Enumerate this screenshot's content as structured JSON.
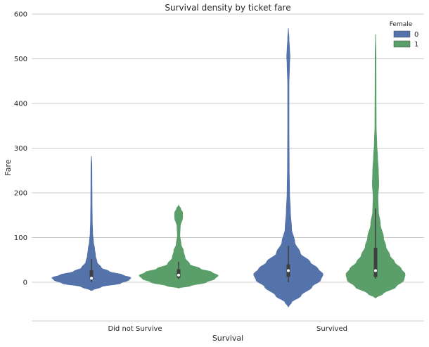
{
  "chart_data": {
    "type": "violin",
    "title": "Survival density by ticket fare",
    "xlabel": "Survival",
    "ylabel": "Fare",
    "categories": [
      "Did not Survive",
      "Survived"
    ],
    "ylim": [
      -85,
      600
    ],
    "yticks": [
      0,
      100,
      200,
      300,
      400,
      500,
      600
    ],
    "grid": true,
    "legend": {
      "title": "Female",
      "placement": "top-right"
    },
    "colors": {
      "0": "#5573ab",
      "1": "#5a9e6a",
      "box": "#3f3f3f",
      "median": "#ffffff"
    },
    "series": [
      {
        "name": "0",
        "violins": [
          {
            "category": "Did not Survive",
            "min": -18,
            "max": 282,
            "box": {
              "q1": 7,
              "median": 9,
              "q3": 27,
              "whisker_low": 0,
              "whisker_high": 52
            },
            "profile": [
              [
                -18,
                0.02
              ],
              [
                -10,
                0.25
              ],
              [
                -2,
                0.75
              ],
              [
                5,
                0.95
              ],
              [
                10,
                1.0
              ],
              [
                16,
                0.8
              ],
              [
                24,
                0.45
              ],
              [
                32,
                0.25
              ],
              [
                45,
                0.14
              ],
              [
                60,
                0.1
              ],
              [
                75,
                0.08
              ],
              [
                90,
                0.05
              ],
              [
                110,
                0.03
              ],
              [
                140,
                0.02
              ],
              [
                180,
                0.015
              ],
              [
                230,
                0.012
              ],
              [
                260,
                0.01
              ],
              [
                282,
                0.0
              ]
            ]
          },
          {
            "category": "Survived",
            "min": -55,
            "max": 568,
            "box": {
              "q1": 12,
              "median": 26,
              "q3": 40,
              "whisker_low": 0,
              "whisker_high": 82
            },
            "profile": [
              [
                -55,
                0.0
              ],
              [
                -45,
                0.08
              ],
              [
                -30,
                0.32
              ],
              [
                -10,
                0.6
              ],
              [
                5,
                0.82
              ],
              [
                18,
                0.88
              ],
              [
                30,
                0.75
              ],
              [
                45,
                0.55
              ],
              [
                65,
                0.3
              ],
              [
                90,
                0.16
              ],
              [
                120,
                0.08
              ],
              [
                160,
                0.05
              ],
              [
                200,
                0.03
              ],
              [
                260,
                0.02
              ],
              [
                350,
                0.015
              ],
              [
                440,
                0.015
              ],
              [
                490,
                0.03
              ],
              [
                505,
                0.04
              ],
              [
                520,
                0.03
              ],
              [
                545,
                0.015
              ],
              [
                568,
                0.0
              ]
            ]
          }
        ]
      },
      {
        "name": "1",
        "violins": [
          {
            "category": "Did not Survive",
            "min": -13,
            "max": 172,
            "box": {
              "q1": 10,
              "median": 16,
              "q3": 29,
              "whisker_low": 7,
              "whisker_high": 46
            },
            "profile": [
              [
                -13,
                0.0
              ],
              [
                -8,
                0.3
              ],
              [
                0,
                0.7
              ],
              [
                8,
                0.92
              ],
              [
                15,
                1.0
              ],
              [
                22,
                0.85
              ],
              [
                30,
                0.55
              ],
              [
                40,
                0.28
              ],
              [
                55,
                0.16
              ],
              [
                70,
                0.12
              ],
              [
                85,
                0.06
              ],
              [
                105,
                0.03
              ],
              [
                125,
                0.04
              ],
              [
                145,
                0.1
              ],
              [
                155,
                0.1
              ],
              [
                165,
                0.05
              ],
              [
                172,
                0.0
              ]
            ]
          },
          {
            "category": "Survived",
            "min": -35,
            "max": 555,
            "box": {
              "q1": 12,
              "median": 26,
              "q3": 77,
              "whisker_low": 8,
              "whisker_high": 165
            },
            "profile": [
              [
                -35,
                0.0
              ],
              [
                -25,
                0.2
              ],
              [
                -10,
                0.52
              ],
              [
                5,
                0.72
              ],
              [
                18,
                0.75
              ],
              [
                30,
                0.65
              ],
              [
                45,
                0.48
              ],
              [
                60,
                0.36
              ],
              [
                80,
                0.26
              ],
              [
                100,
                0.2
              ],
              [
                130,
                0.12
              ],
              [
                160,
                0.07
              ],
              [
                190,
                0.06
              ],
              [
                220,
                0.08
              ],
              [
                250,
                0.07
              ],
              [
                280,
                0.05
              ],
              [
                310,
                0.03
              ],
              [
                350,
                0.015
              ],
              [
                420,
                0.012
              ],
              [
                500,
                0.01
              ],
              [
                555,
                0.0
              ]
            ]
          }
        ]
      }
    ]
  }
}
